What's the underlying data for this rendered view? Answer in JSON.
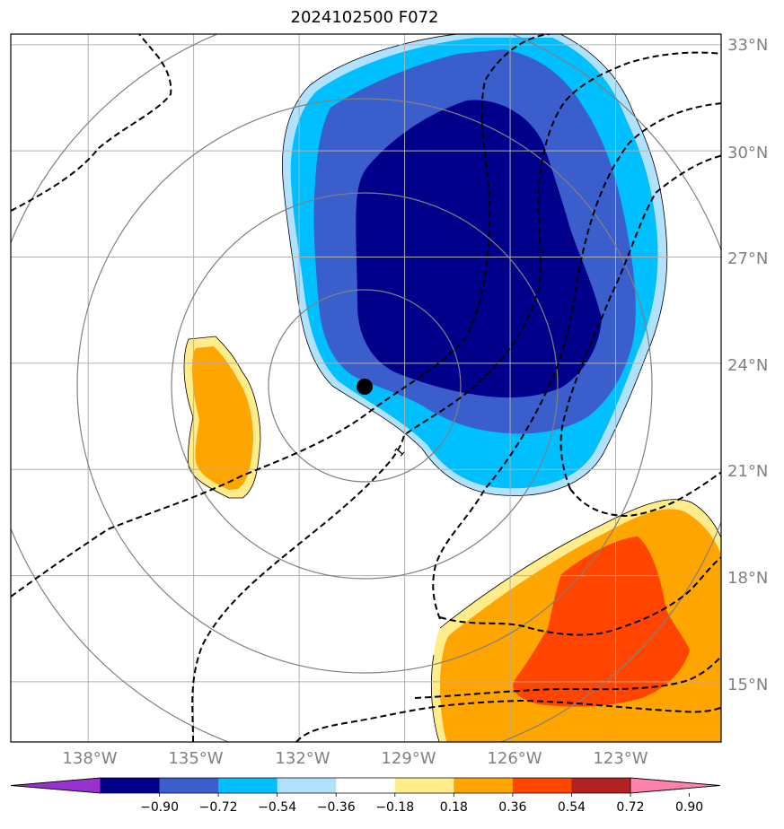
{
  "title": "2024102500 F072",
  "map": {
    "extent": {
      "lon": [
        -140.2,
        -120.0
      ],
      "lat": [
        13.3,
        33.3
      ]
    },
    "grid_lons": [
      -138,
      -135,
      -132,
      -129,
      -126,
      -123
    ],
    "grid_lats": [
      15,
      18,
      21,
      24,
      27,
      30,
      33
    ],
    "lat_labels": [
      "15°N",
      "18°N",
      "21°N",
      "24°N",
      "27°N",
      "30°N",
      "33°N"
    ],
    "lon_labels": [
      "138°W",
      "135°W",
      "132°W",
      "129°W",
      "126°W",
      "123°W"
    ],
    "storm_center": {
      "lon": -130.0,
      "lat": 23.4
    },
    "contour_label": "1",
    "colors": {
      "grid": "#b0b0b0",
      "range_rings": "#808080",
      "storm_marker": "#000000"
    }
  },
  "colorbar": {
    "levels": [
      "−0.90",
      "−0.72",
      "−0.54",
      "−0.36",
      "−0.18",
      "0.18",
      "0.36",
      "0.54",
      "0.72",
      "0.90"
    ],
    "colors": [
      "#9932cc",
      "#00008b",
      "#3a5fcd",
      "#00bfff",
      "#b0e2ff",
      "#ffffff",
      "#ffec8b",
      "#ffa500",
      "#ff4500",
      "#b22222",
      "#ff82ab"
    ]
  }
}
